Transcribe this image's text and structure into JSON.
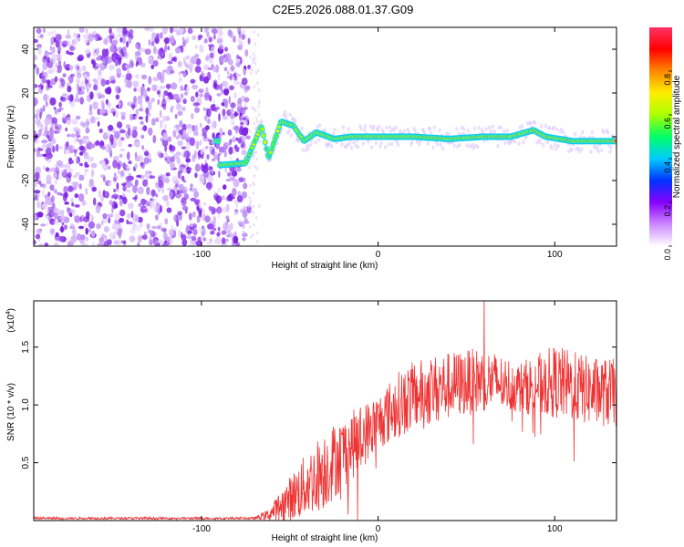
{
  "title": "C2E5.2026.088.01.37.G09",
  "colors": {
    "background": "#ffffff",
    "snr_line": "#ee3333",
    "axis": "#000000"
  },
  "chart_data": [
    {
      "type": "heatmap",
      "name": "spectrogram",
      "xlabel": "Height of straight line (km)",
      "ylabel": "Frequency (Hz)",
      "xlim": [
        -195,
        135
      ],
      "ylim": [
        -50,
        50
      ],
      "xticks": [
        -100,
        0,
        100
      ],
      "yticks": [
        -40,
        -20,
        0,
        20,
        40
      ],
      "noise_region_x": [
        -195,
        -73
      ],
      "sparse_noise_x": [
        -73,
        -67
      ],
      "signal_track": [
        {
          "x": -90,
          "freq": -13
        },
        {
          "x": -75,
          "freq": -12
        },
        {
          "x": -66,
          "freq": 5
        },
        {
          "x": -62,
          "freq": -10
        },
        {
          "x": -55,
          "freq": 7
        },
        {
          "x": -48,
          "freq": 5
        },
        {
          "x": -42,
          "freq": -2
        },
        {
          "x": -35,
          "freq": 2
        },
        {
          "x": -25,
          "freq": -1
        },
        {
          "x": -15,
          "freq": 0
        },
        {
          "x": 0,
          "freq": 0
        },
        {
          "x": 20,
          "freq": 0
        },
        {
          "x": 40,
          "freq": -1
        },
        {
          "x": 60,
          "freq": 0
        },
        {
          "x": 75,
          "freq": 0
        },
        {
          "x": 88,
          "freq": 3
        },
        {
          "x": 95,
          "freq": 0
        },
        {
          "x": 110,
          "freq": -2
        },
        {
          "x": 125,
          "freq": -2
        },
        {
          "x": 135,
          "freq": -2
        }
      ],
      "colorbar": {
        "label": "Normalized spectral amplitude",
        "ticks": [
          "0.0",
          "0.2",
          "0.4",
          "0.6",
          "0.8"
        ],
        "tick_values": [
          0.0,
          0.2,
          0.4,
          0.6,
          0.8
        ],
        "range": [
          0,
          1
        ],
        "stops": [
          "#ffffff",
          "#cc88ff",
          "#8800ff",
          "#0033ff",
          "#00ccff",
          "#00ff66",
          "#aaff00",
          "#ffee00",
          "#ff8800",
          "#ff0000",
          "#ff3366"
        ]
      }
    },
    {
      "type": "line",
      "name": "snr",
      "xlabel": "Height of straight line (km)",
      "ylabel": "SNR (10 * v/v)",
      "scale_label": "(x10",
      "scale_exp": "4",
      "scale_close": ")",
      "xlim": [
        -195,
        135
      ],
      "ylim": [
        0,
        1.9
      ],
      "xticks": [
        -100,
        0,
        100
      ],
      "yticks": [
        0.5,
        1.0,
        1.5
      ],
      "ytick_labels": [
        "0.5",
        "1.0",
        "1.5"
      ],
      "envelope": [
        {
          "x": -195,
          "base": 0.02,
          "amp": 0.01
        },
        {
          "x": -70,
          "base": 0.02,
          "amp": 0.01
        },
        {
          "x": -62,
          "base": 0.05,
          "amp": 0.05
        },
        {
          "x": -45,
          "base": 0.25,
          "amp": 0.25
        },
        {
          "x": -30,
          "base": 0.45,
          "amp": 0.35
        },
        {
          "x": -15,
          "base": 0.65,
          "amp": 0.3
        },
        {
          "x": 0,
          "base": 0.85,
          "amp": 0.25
        },
        {
          "x": 15,
          "base": 1.05,
          "amp": 0.3
        },
        {
          "x": 35,
          "base": 1.15,
          "amp": 0.3
        },
        {
          "x": 60,
          "base": 1.22,
          "amp": 0.28
        },
        {
          "x": 80,
          "base": 1.15,
          "amp": 0.22
        },
        {
          "x": 100,
          "base": 1.2,
          "amp": 0.32
        },
        {
          "x": 120,
          "base": 1.12,
          "amp": 0.3
        },
        {
          "x": 135,
          "base": 1.1,
          "amp": 0.3
        }
      ],
      "peak": {
        "x": 60,
        "y": 1.95
      }
    }
  ]
}
